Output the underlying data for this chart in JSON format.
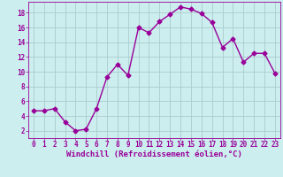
{
  "x": [
    0,
    1,
    2,
    3,
    4,
    5,
    6,
    7,
    8,
    9,
    10,
    11,
    12,
    13,
    14,
    15,
    16,
    17,
    18,
    19,
    20,
    21,
    22,
    23
  ],
  "y": [
    4.7,
    4.7,
    5.0,
    3.2,
    2.0,
    2.2,
    5.0,
    9.3,
    11.0,
    9.5,
    16.0,
    15.3,
    16.8,
    17.8,
    18.8,
    18.5,
    17.9,
    16.7,
    13.3,
    14.5,
    11.3,
    12.5,
    12.5,
    9.8
  ],
  "line_color": "#990099",
  "marker": "D",
  "markersize": 2.5,
  "linewidth": 1.0,
  "bg_color": "#cceeee",
  "grid_color": "#aacccc",
  "xlabel": "Windchill (Refroidissement éolien,°C)",
  "xlabel_fontsize": 6.5,
  "xlabel_color": "#990099",
  "tick_color": "#990099",
  "tick_fontsize": 5.5,
  "ylim": [
    1,
    19.5
  ],
  "xlim": [
    -0.5,
    23.5
  ],
  "yticks": [
    2,
    4,
    6,
    8,
    10,
    12,
    14,
    16,
    18
  ],
  "xticks": [
    0,
    1,
    2,
    3,
    4,
    5,
    6,
    7,
    8,
    9,
    10,
    11,
    12,
    13,
    14,
    15,
    16,
    17,
    18,
    19,
    20,
    21,
    22,
    23
  ]
}
